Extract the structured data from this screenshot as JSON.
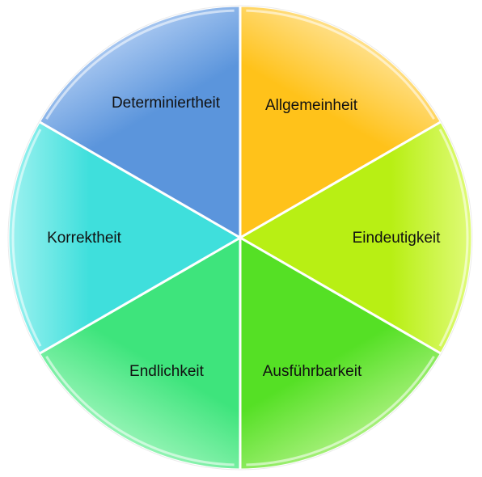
{
  "diagram": {
    "segments": [
      {
        "label": "Allgemeinheit",
        "color": "#ffc21a",
        "light": "#ffe08a"
      },
      {
        "label": "Eindeutigkeit",
        "color": "#b8ef14",
        "light": "#e0fb7a"
      },
      {
        "label": "Ausführbarkeit",
        "color": "#55e025",
        "light": "#a6f07a"
      },
      {
        "label": "Endlichkeit",
        "color": "#3ee47c",
        "light": "#95f4b5"
      },
      {
        "label": "Korrektheit",
        "color": "#3fdfdc",
        "light": "#9ff2f0"
      },
      {
        "label": "Determiniertheit",
        "color": "#5b95dc",
        "light": "#a6c6f0"
      }
    ]
  }
}
